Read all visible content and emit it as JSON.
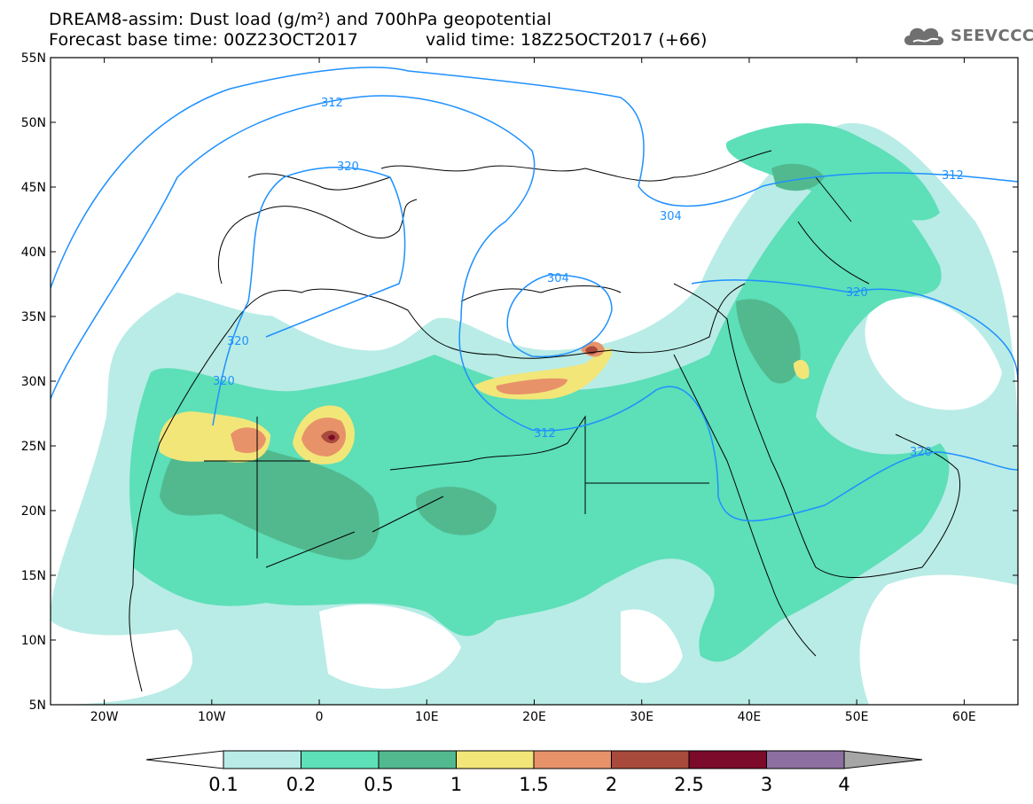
{
  "header": {
    "title_line1": "DREAM8-assim: Dust load (g/m²) and 700hPa geopotential",
    "title_line2": "Forecast base time: 00Z23OCT2017",
    "valid_time": "valid time: 18Z25OCT2017 (+66)",
    "logo_text": "SEEVCCC",
    "logo_icon": "cloud-logo-icon"
  },
  "map": {
    "lat_labels": [
      "55N",
      "50N",
      "45N",
      "40N",
      "35N",
      "30N",
      "25N",
      "20N",
      "15N",
      "10N",
      "5N"
    ],
    "lon_labels": [
      "20W",
      "10W",
      "0",
      "10E",
      "20E",
      "30E",
      "40E",
      "50E",
      "60E"
    ],
    "contour_labels": [
      "312",
      "320",
      "304",
      "320",
      "320",
      "304",
      "312",
      "320",
      "312",
      "320"
    ]
  },
  "colorbar": {
    "tick_labels": [
      "0.1",
      "0.2",
      "0.5",
      "1",
      "1.5",
      "2",
      "2.5",
      "3",
      "4"
    ],
    "colors": [
      "#ffffff",
      "#b9ece6",
      "#5ddfb8",
      "#52b98f",
      "#f2e679",
      "#e8926a",
      "#a84a3c",
      "#7c0a2a",
      "#8d6fa1",
      "#a6a6a6"
    ]
  },
  "colors": {
    "contour": "#1e90ff",
    "coast": "#000000"
  }
}
